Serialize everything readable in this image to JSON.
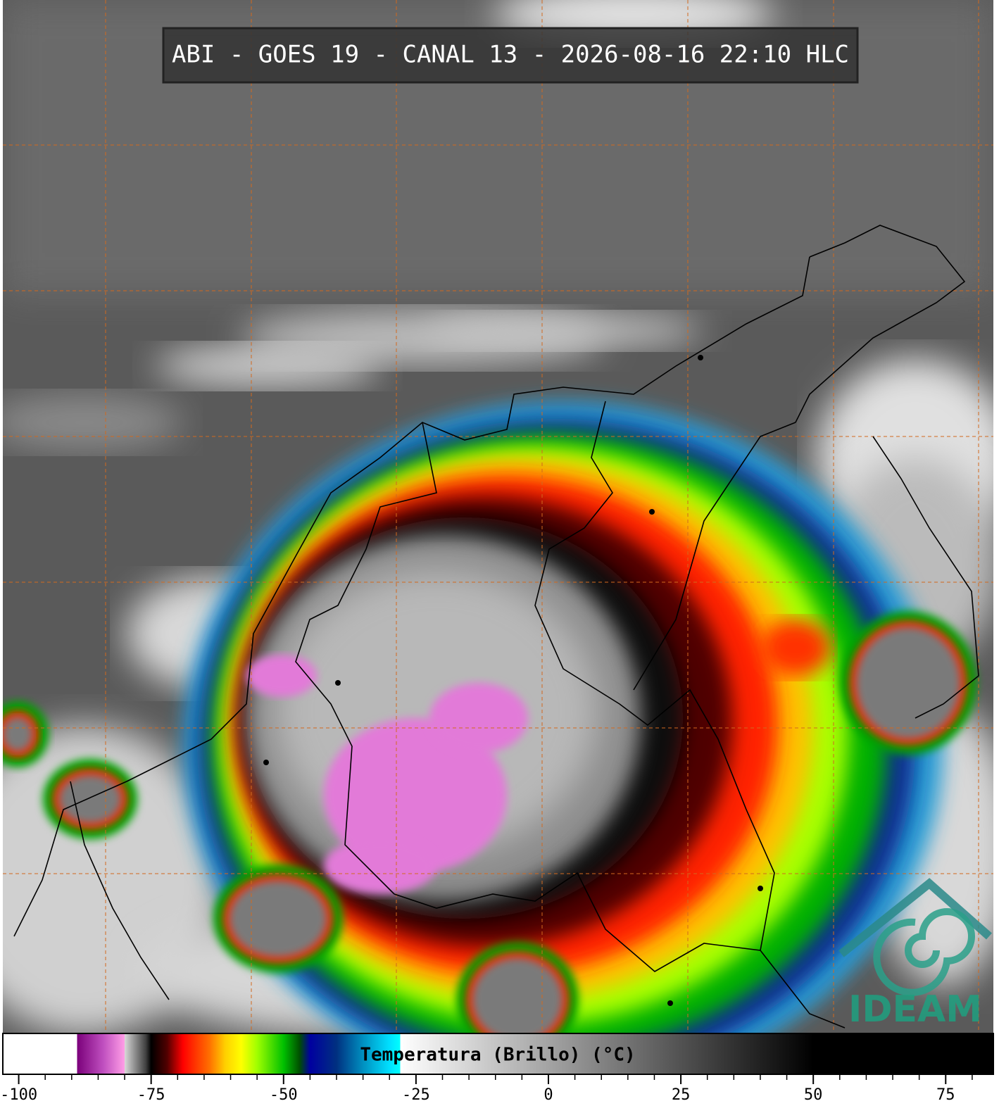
{
  "header": {
    "title": "ABI - GOES 19 - CANAL 13 - 2026-08-16 22:10 HLC"
  },
  "colorbar": {
    "label": "Temperatura (Brillo) (°C)",
    "lim": [
      -103,
      84
    ],
    "ticks": [
      -100,
      -75,
      -50,
      -25,
      0,
      25,
      50,
      75
    ],
    "minor_ticks": [
      -95,
      -90,
      -85,
      -80,
      -70,
      -65,
      -60,
      -55,
      -45,
      -40,
      -35,
      -30,
      -20,
      -15,
      -10,
      -5,
      5,
      10,
      15,
      20,
      30,
      35,
      40,
      45,
      55,
      60,
      65,
      70,
      80
    ],
    "colormap": [
      {
        "value": -103,
        "color": "#ffffff"
      },
      {
        "value": -89,
        "color": "#ffffff"
      },
      {
        "value": -89,
        "color": "#7a007a"
      },
      {
        "value": -84,
        "color": "#c050c0"
      },
      {
        "value": -80,
        "color": "#ff9ee6"
      },
      {
        "value": -80,
        "color": "#d8d8d8"
      },
      {
        "value": -76,
        "color": "#404040"
      },
      {
        "value": -75,
        "color": "#000000"
      },
      {
        "value": -72,
        "color": "#500000"
      },
      {
        "value": -69,
        "color": "#ff0000"
      },
      {
        "value": -64,
        "color": "#ff7000"
      },
      {
        "value": -61,
        "color": "#ffd000"
      },
      {
        "value": -58,
        "color": "#ffff00"
      },
      {
        "value": -55,
        "color": "#a0ff00"
      },
      {
        "value": -50,
        "color": "#00c000"
      },
      {
        "value": -47,
        "color": "#005000"
      },
      {
        "value": -45,
        "color": "#0000a0"
      },
      {
        "value": -40,
        "color": "#003080"
      },
      {
        "value": -35,
        "color": "#0090c0"
      },
      {
        "value": -30,
        "color": "#00e0ff"
      },
      {
        "value": -28,
        "color": "#00ffff"
      },
      {
        "value": -28,
        "color": "#ffffff"
      },
      {
        "value": 50,
        "color": "#000000"
      },
      {
        "value": 84,
        "color": "#000000"
      }
    ]
  },
  "logo": {
    "text": "IDEAM"
  }
}
